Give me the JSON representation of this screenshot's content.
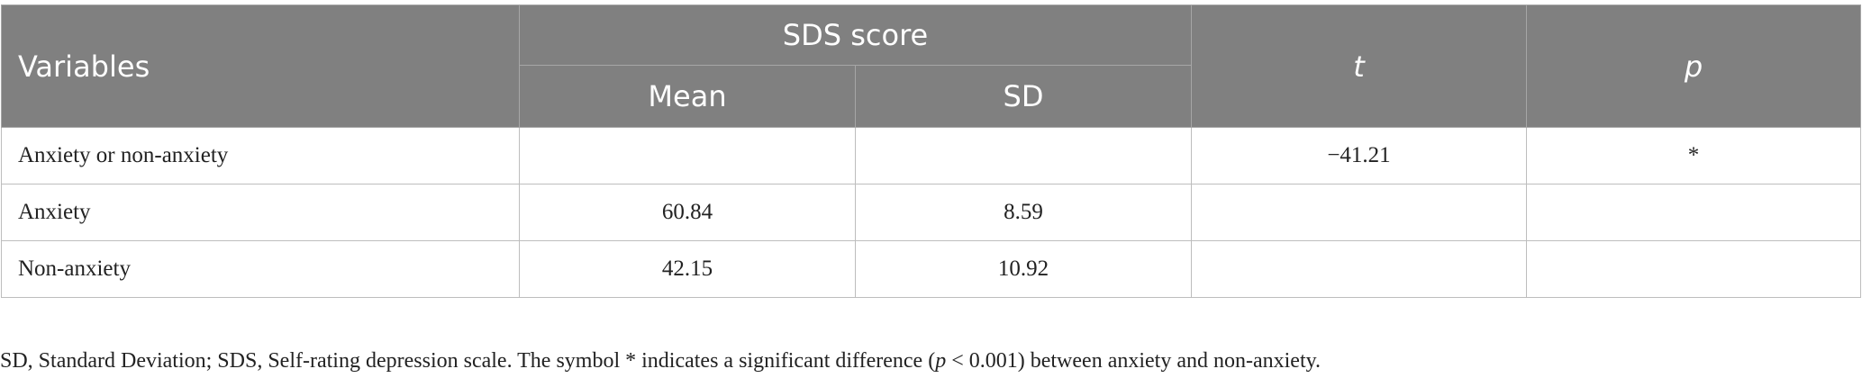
{
  "table": {
    "header": {
      "variables": "Variables",
      "group": "SDS score",
      "mean": "Mean",
      "sd": "SD",
      "t": "t",
      "p": "p"
    },
    "rows": [
      [
        "Anxiety or non-anxiety",
        null,
        null,
        "−41.21",
        "*"
      ],
      [
        "Anxiety",
        "60.84",
        "8.59",
        null,
        null
      ],
      [
        "Non-anxiety",
        "42.15",
        "10.92",
        null,
        null
      ]
    ]
  },
  "footnote": {
    "before": "SD, Standard Deviation; SDS, Self-rating depression scale. The symbol * indicates a significant difference (",
    "italic": "p",
    "after": " < 0.001) between anxiety and non-anxiety."
  }
}
